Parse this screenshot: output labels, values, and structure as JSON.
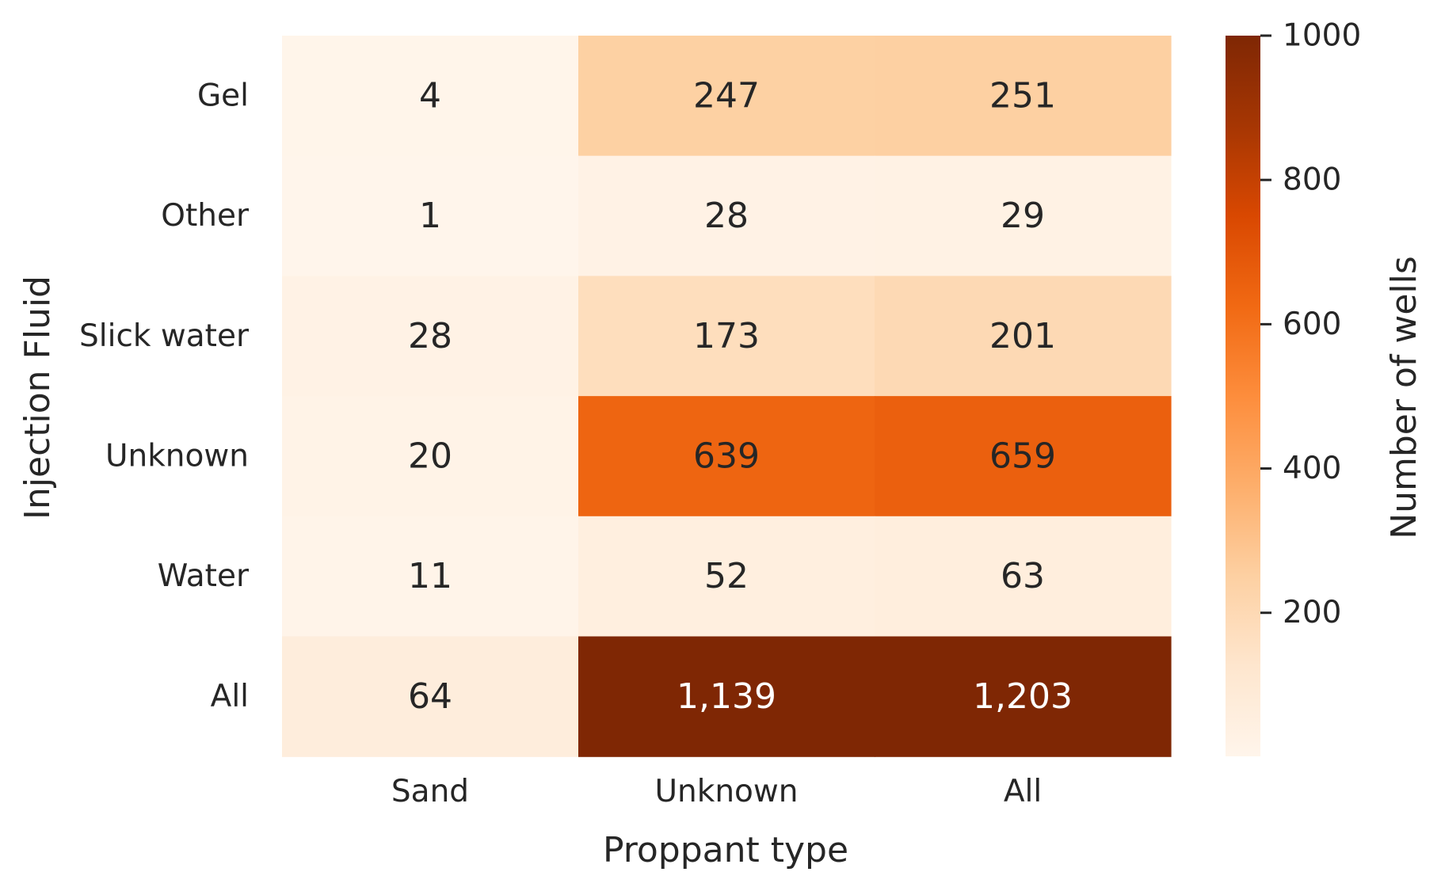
{
  "chart_data": {
    "type": "heatmap",
    "xlabel": "Proppant type",
    "ylabel": "Injection Fluid",
    "x_categories": [
      "Sand",
      "Unknown",
      "All"
    ],
    "y_categories": [
      "Gel",
      "Other",
      "Slick water",
      "Unknown",
      "Water",
      "All"
    ],
    "values": [
      [
        4,
        247,
        251
      ],
      [
        1,
        28,
        29
      ],
      [
        28,
        173,
        201
      ],
      [
        20,
        639,
        659
      ],
      [
        11,
        52,
        63
      ],
      [
        64,
        1139,
        1203
      ]
    ],
    "cell_labels": [
      [
        "4",
        "247",
        "251"
      ],
      [
        "1",
        "28",
        "29"
      ],
      [
        "28",
        "173",
        "201"
      ],
      [
        "20",
        "639",
        "659"
      ],
      [
        "11",
        "52",
        "63"
      ],
      [
        "64",
        "1,139",
        "1,203"
      ]
    ],
    "colormap": "Oranges",
    "colorbar": {
      "label": "Number of wells",
      "range": [
        1,
        1000
      ],
      "ticks": [
        200,
        400,
        600,
        800,
        1000
      ],
      "tick_labels": [
        "200",
        "400",
        "600",
        "800",
        "1000"
      ]
    },
    "grid": false
  }
}
